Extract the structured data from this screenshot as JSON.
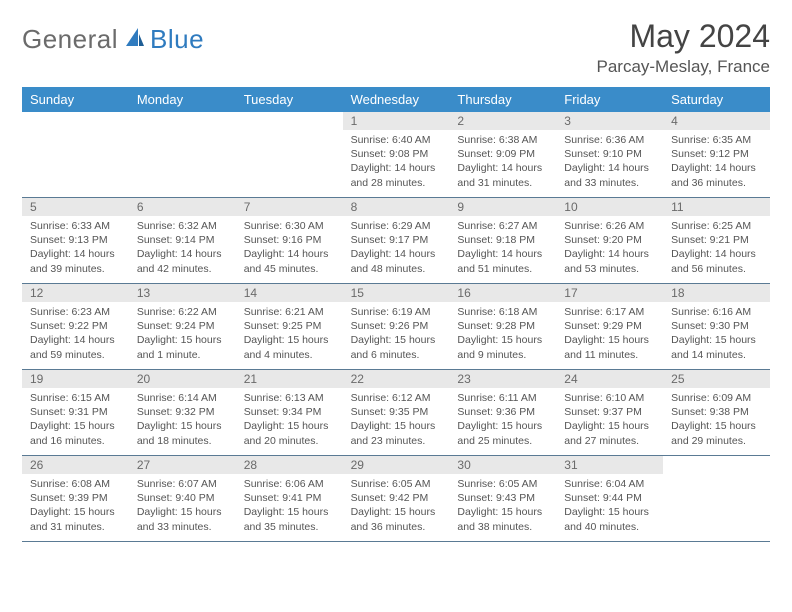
{
  "logo": {
    "part1": "General",
    "part2": "Blue"
  },
  "title": "May 2024",
  "location": "Parcay-Meslay, France",
  "colors": {
    "header_bg": "#3a8cc9",
    "header_text": "#ffffff",
    "daynum_bg": "#e8e8e8",
    "daynum_text": "#6a6a6a",
    "body_text": "#555555",
    "border": "#5a7a94",
    "logo_gray": "#6b6b6b",
    "logo_blue": "#2f7bbf"
  },
  "day_names": [
    "Sunday",
    "Monday",
    "Tuesday",
    "Wednesday",
    "Thursday",
    "Friday",
    "Saturday"
  ],
  "leading_blanks": 3,
  "days": [
    {
      "n": "1",
      "sunrise": "6:40 AM",
      "sunset": "9:08 PM",
      "daylight": "14 hours and 28 minutes."
    },
    {
      "n": "2",
      "sunrise": "6:38 AM",
      "sunset": "9:09 PM",
      "daylight": "14 hours and 31 minutes."
    },
    {
      "n": "3",
      "sunrise": "6:36 AM",
      "sunset": "9:10 PM",
      "daylight": "14 hours and 33 minutes."
    },
    {
      "n": "4",
      "sunrise": "6:35 AM",
      "sunset": "9:12 PM",
      "daylight": "14 hours and 36 minutes."
    },
    {
      "n": "5",
      "sunrise": "6:33 AM",
      "sunset": "9:13 PM",
      "daylight": "14 hours and 39 minutes."
    },
    {
      "n": "6",
      "sunrise": "6:32 AM",
      "sunset": "9:14 PM",
      "daylight": "14 hours and 42 minutes."
    },
    {
      "n": "7",
      "sunrise": "6:30 AM",
      "sunset": "9:16 PM",
      "daylight": "14 hours and 45 minutes."
    },
    {
      "n": "8",
      "sunrise": "6:29 AM",
      "sunset": "9:17 PM",
      "daylight": "14 hours and 48 minutes."
    },
    {
      "n": "9",
      "sunrise": "6:27 AM",
      "sunset": "9:18 PM",
      "daylight": "14 hours and 51 minutes."
    },
    {
      "n": "10",
      "sunrise": "6:26 AM",
      "sunset": "9:20 PM",
      "daylight": "14 hours and 53 minutes."
    },
    {
      "n": "11",
      "sunrise": "6:25 AM",
      "sunset": "9:21 PM",
      "daylight": "14 hours and 56 minutes."
    },
    {
      "n": "12",
      "sunrise": "6:23 AM",
      "sunset": "9:22 PM",
      "daylight": "14 hours and 59 minutes."
    },
    {
      "n": "13",
      "sunrise": "6:22 AM",
      "sunset": "9:24 PM",
      "daylight": "15 hours and 1 minute."
    },
    {
      "n": "14",
      "sunrise": "6:21 AM",
      "sunset": "9:25 PM",
      "daylight": "15 hours and 4 minutes."
    },
    {
      "n": "15",
      "sunrise": "6:19 AM",
      "sunset": "9:26 PM",
      "daylight": "15 hours and 6 minutes."
    },
    {
      "n": "16",
      "sunrise": "6:18 AM",
      "sunset": "9:28 PM",
      "daylight": "15 hours and 9 minutes."
    },
    {
      "n": "17",
      "sunrise": "6:17 AM",
      "sunset": "9:29 PM",
      "daylight": "15 hours and 11 minutes."
    },
    {
      "n": "18",
      "sunrise": "6:16 AM",
      "sunset": "9:30 PM",
      "daylight": "15 hours and 14 minutes."
    },
    {
      "n": "19",
      "sunrise": "6:15 AM",
      "sunset": "9:31 PM",
      "daylight": "15 hours and 16 minutes."
    },
    {
      "n": "20",
      "sunrise": "6:14 AM",
      "sunset": "9:32 PM",
      "daylight": "15 hours and 18 minutes."
    },
    {
      "n": "21",
      "sunrise": "6:13 AM",
      "sunset": "9:34 PM",
      "daylight": "15 hours and 20 minutes."
    },
    {
      "n": "22",
      "sunrise": "6:12 AM",
      "sunset": "9:35 PM",
      "daylight": "15 hours and 23 minutes."
    },
    {
      "n": "23",
      "sunrise": "6:11 AM",
      "sunset": "9:36 PM",
      "daylight": "15 hours and 25 minutes."
    },
    {
      "n": "24",
      "sunrise": "6:10 AM",
      "sunset": "9:37 PM",
      "daylight": "15 hours and 27 minutes."
    },
    {
      "n": "25",
      "sunrise": "6:09 AM",
      "sunset": "9:38 PM",
      "daylight": "15 hours and 29 minutes."
    },
    {
      "n": "26",
      "sunrise": "6:08 AM",
      "sunset": "9:39 PM",
      "daylight": "15 hours and 31 minutes."
    },
    {
      "n": "27",
      "sunrise": "6:07 AM",
      "sunset": "9:40 PM",
      "daylight": "15 hours and 33 minutes."
    },
    {
      "n": "28",
      "sunrise": "6:06 AM",
      "sunset": "9:41 PM",
      "daylight": "15 hours and 35 minutes."
    },
    {
      "n": "29",
      "sunrise": "6:05 AM",
      "sunset": "9:42 PM",
      "daylight": "15 hours and 36 minutes."
    },
    {
      "n": "30",
      "sunrise": "6:05 AM",
      "sunset": "9:43 PM",
      "daylight": "15 hours and 38 minutes."
    },
    {
      "n": "31",
      "sunrise": "6:04 AM",
      "sunset": "9:44 PM",
      "daylight": "15 hours and 40 minutes."
    }
  ],
  "labels": {
    "sunrise": "Sunrise: ",
    "sunset": "Sunset: ",
    "daylight": "Daylight: "
  }
}
